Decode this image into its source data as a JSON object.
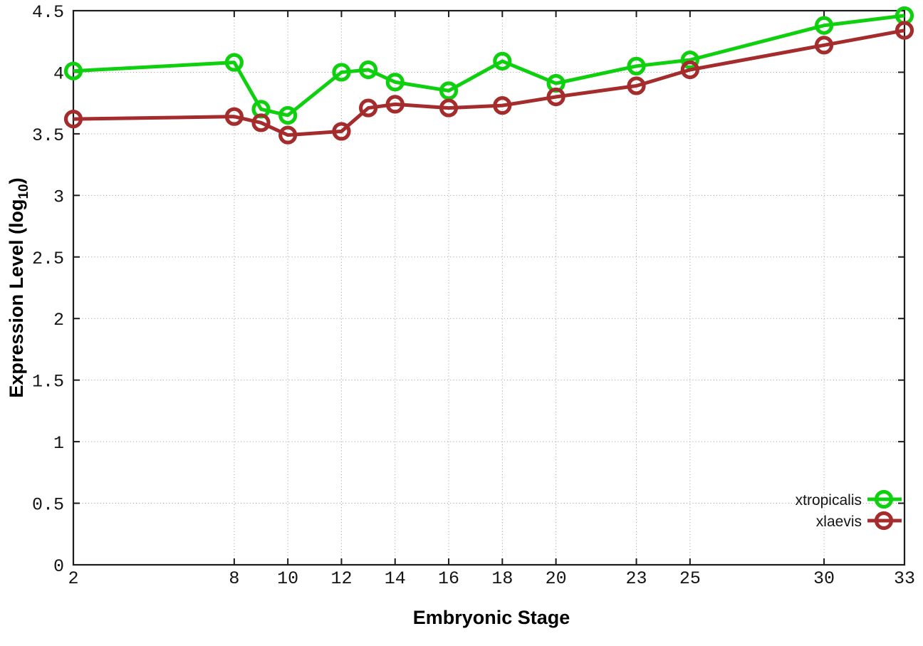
{
  "chart_data": {
    "type": "line",
    "title": "",
    "xlabel": "Embryonic Stage",
    "ylabel": "Expression Level (log10)",
    "ylabel_main": "Expression Level (log",
    "ylabel_sub": "10",
    "ylabel_close": ")",
    "xlim": [
      2,
      33
    ],
    "ylim": [
      0,
      4.5
    ],
    "x_ticks": [
      2,
      8,
      10,
      12,
      14,
      16,
      18,
      20,
      23,
      25,
      30,
      33
    ],
    "y_ticks": [
      0,
      0.5,
      1,
      1.5,
      2,
      2.5,
      3,
      3.5,
      4,
      4.5
    ],
    "grid": true,
    "legend_position": "bottom-right-inside",
    "marker_style": "open-circle",
    "background_color": "#ffffff",
    "border_color": "#1c1c1c",
    "grid_color": "#9c9c9c",
    "x": [
      2,
      8,
      9,
      10,
      12,
      13,
      14,
      16,
      18,
      20,
      23,
      25,
      30,
      33
    ],
    "series": [
      {
        "name": "xtropicalis",
        "color": "#0fd00f",
        "values": [
          4.01,
          4.08,
          3.7,
          3.65,
          4.0,
          4.02,
          3.92,
          3.85,
          4.09,
          3.91,
          4.05,
          4.1,
          4.38,
          4.46
        ]
      },
      {
        "name": "xlaevis",
        "color": "#a52c2c",
        "values": [
          3.62,
          3.64,
          3.59,
          3.49,
          3.52,
          3.71,
          3.74,
          3.71,
          3.73,
          3.8,
          3.89,
          4.02,
          4.22,
          4.34
        ]
      }
    ]
  }
}
